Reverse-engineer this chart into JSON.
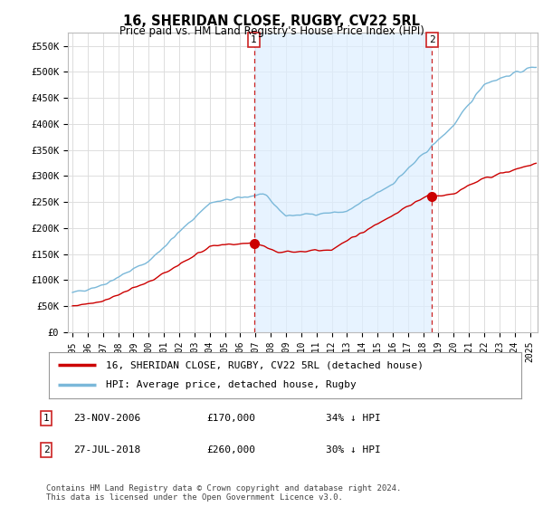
{
  "title": "16, SHERIDAN CLOSE, RUGBY, CV22 5RL",
  "subtitle": "Price paid vs. HM Land Registry's House Price Index (HPI)",
  "ylabel_ticks": [
    0,
    50000,
    100000,
    150000,
    200000,
    250000,
    300000,
    350000,
    400000,
    450000,
    500000,
    550000
  ],
  "ylabel_labels": [
    "£0",
    "£50K",
    "£100K",
    "£150K",
    "£200K",
    "£250K",
    "£300K",
    "£350K",
    "£400K",
    "£450K",
    "£500K",
    "£550K"
  ],
  "ylim": [
    0,
    575000
  ],
  "xlim_start": 1994.7,
  "xlim_end": 2025.5,
  "purchase1_x": 2006.9,
  "purchase1_y": 170000,
  "purchase2_x": 2018.58,
  "purchase2_y": 260000,
  "hpi_color": "#7ab8d9",
  "price_color": "#cc0000",
  "vline_color": "#cc2222",
  "shade_color": "#ddeeff",
  "legend_label_red": "16, SHERIDAN CLOSE, RUGBY, CV22 5RL (detached house)",
  "legend_label_blue": "HPI: Average price, detached house, Rugby",
  "table_rows": [
    {
      "num": "1",
      "date": "23-NOV-2006",
      "price": "£170,000",
      "hpi": "34% ↓ HPI"
    },
    {
      "num": "2",
      "date": "27-JUL-2018",
      "price": "£260,000",
      "hpi": "30% ↓ HPI"
    }
  ],
  "footer": "Contains HM Land Registry data © Crown copyright and database right 2024.\nThis data is licensed under the Open Government Licence v3.0.",
  "background_color": "#ffffff",
  "grid_color": "#dddddd",
  "title_fontsize": 10.5,
  "subtitle_fontsize": 8.5,
  "tick_fontsize": 7.5,
  "legend_fontsize": 8,
  "table_fontsize": 8,
  "footer_fontsize": 6.5
}
